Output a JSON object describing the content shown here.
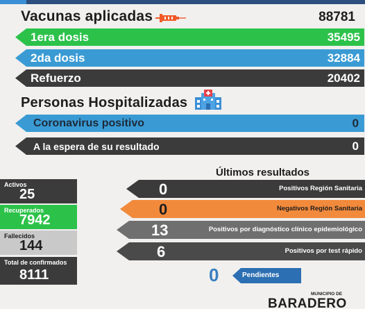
{
  "vacunas": {
    "title": "Vacunas aplicadas",
    "total": "88781",
    "rows": [
      {
        "label": "1era dosis",
        "value": "35495",
        "color": "#2cc24a"
      },
      {
        "label": "2da dosis",
        "value": "32884",
        "color": "#3a9bd4"
      },
      {
        "label": "Refuerzo",
        "value": "20402",
        "color": "#3b3b3b"
      }
    ],
    "icon": "syringe-icon"
  },
  "hospitalizadas": {
    "title": "Personas Hospitalizadas",
    "icon": "hospital-icon",
    "rows": [
      {
        "label": "Coronavirus positivo",
        "value": "0",
        "color": "#3a9bd4"
      },
      {
        "label": "A la espera de su resultado",
        "value": "0",
        "color": "#3b3b3b"
      }
    ]
  },
  "stats": [
    {
      "label": "Activos",
      "value": "25",
      "color": "#3b3b3b"
    },
    {
      "label": "Recuperados",
      "value": "7942",
      "color": "#2cc24a"
    },
    {
      "label": "Fallecidos",
      "value": "144",
      "color": "#c9c9c9"
    },
    {
      "label": "Total de confirmados",
      "value": "8111",
      "color": "#3b3b3b"
    }
  ],
  "resultados": {
    "title": "Últimos resultados",
    "rows": [
      {
        "value": "0",
        "label": "Positivos Región Sanitaria",
        "color": "#3b3b3b"
      },
      {
        "value": "0",
        "label": "Negativos Región Sanitaria",
        "color": "#f28a3c"
      },
      {
        "value": "13",
        "label": "Positivos por diagnóstico clínico epidemiológico",
        "color": "#6f6f6f"
      },
      {
        "value": "6",
        "label": "Positivos por test rápido",
        "color": "#4a4a4a"
      }
    ],
    "pendientes": {
      "value": "0",
      "label": "Pendientes",
      "color": "#2c6fb2"
    }
  },
  "footer": {
    "municipio": "MUNICIPIO DE",
    "ciudad": "BARADERO"
  }
}
